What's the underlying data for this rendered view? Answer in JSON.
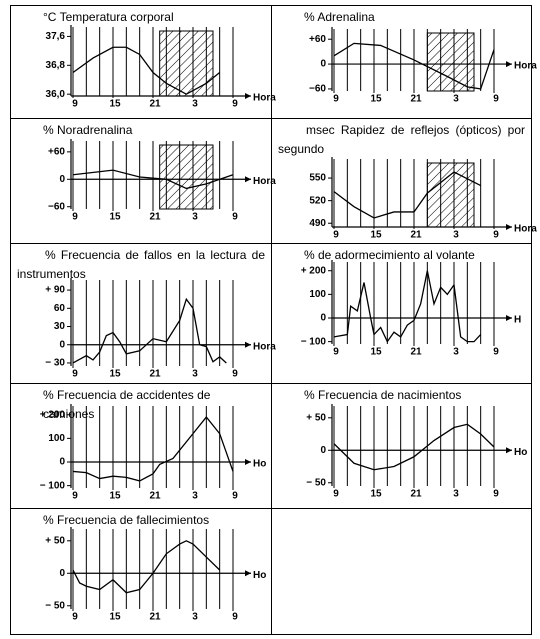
{
  "chart_data": [
    {
      "type": "line",
      "title": "°C Temperatura corporal",
      "x_label": "Hora",
      "x": [
        0,
        3,
        6,
        8,
        10,
        12,
        14,
        17,
        20,
        22
      ],
      "values": [
        36.6,
        37.0,
        37.3,
        37.3,
        37.1,
        36.6,
        36.3,
        36.0,
        36.3,
        36.6
      ],
      "xlim": [
        0,
        24
      ],
      "xticks": [
        {
          "value": 0,
          "label": "9"
        },
        {
          "value": 6,
          "label": "15"
        },
        {
          "value": 12,
          "label": "21"
        },
        {
          "value": 18,
          "label": "3"
        },
        {
          "value": 24,
          "label": "9"
        }
      ],
      "ylim": [
        35.95,
        37.75
      ],
      "yticks": [
        {
          "value": 36.0,
          "label": "36,0"
        },
        {
          "value": 36.8,
          "label": "36,8"
        },
        {
          "value": 37.6,
          "label": "37,6"
        }
      ],
      "shade": [
        13,
        21
      ],
      "color": "#000000"
    },
    {
      "type": "line",
      "title": "% Adrenalina",
      "x_label": "Hora",
      "x": [
        0,
        3,
        7,
        12,
        17,
        20,
        22,
        24
      ],
      "values": [
        20,
        50,
        45,
        10,
        -30,
        -55,
        -60,
        35
      ],
      "xlim": [
        0,
        24
      ],
      "xticks": [
        {
          "value": 0,
          "label": "9"
        },
        {
          "value": 6,
          "label": "15"
        },
        {
          "value": 12,
          "label": "21"
        },
        {
          "value": 18,
          "label": "3"
        },
        {
          "value": 24,
          "label": "9"
        }
      ],
      "ylim": [
        -65,
        75
      ],
      "yticks": [
        {
          "value": 60,
          "label": "+60"
        },
        0,
        {
          "value": -60,
          "label": "−60"
        }
      ],
      "shade": [
        14,
        21
      ],
      "color": "#000000"
    },
    {
      "type": "line",
      "title": "% Noradrenalina",
      "x_label": "Hora",
      "x": [
        0,
        6,
        10,
        14,
        17,
        20,
        24
      ],
      "values": [
        10,
        20,
        5,
        0,
        -20,
        -10,
        10
      ],
      "xlim": [
        0,
        24
      ],
      "xticks": [
        {
          "value": 0,
          "label": "9"
        },
        {
          "value": 6,
          "label": "15"
        },
        {
          "value": 12,
          "label": "21"
        },
        {
          "value": 18,
          "label": "3"
        },
        {
          "value": 24,
          "label": "9"
        }
      ],
      "ylim": [
        -65,
        75
      ],
      "yticks": [
        {
          "value": 60,
          "label": "+60"
        },
        0,
        {
          "value": -60,
          "label": "−60"
        }
      ],
      "shade": [
        13,
        21
      ],
      "color": "#000000"
    },
    {
      "type": "line",
      "title": "msec Rapidez de reflejos (ópticos) por segundo",
      "x_label": "Hora",
      "x": [
        0,
        3,
        6,
        9,
        12,
        14,
        18,
        22
      ],
      "values": [
        532,
        512,
        497,
        505,
        505,
        530,
        558,
        540
      ],
      "xlim": [
        0,
        24
      ],
      "xticks": [
        {
          "value": 0,
          "label": "9"
        },
        {
          "value": 6,
          "label": "15"
        },
        {
          "value": 12,
          "label": "21"
        },
        {
          "value": 18,
          "label": "3"
        },
        {
          "value": 24,
          "label": "9"
        }
      ],
      "ylim": [
        485,
        570
      ],
      "yticks": [
        490,
        520,
        550
      ],
      "shade": [
        14,
        21
      ],
      "color": "#000000"
    },
    {
      "type": "line",
      "title": "% Frecuencia de fallos en la lectura de instrumentos",
      "x_label": "Hora",
      "x": [
        0,
        2,
        3,
        4,
        5,
        6,
        7,
        8,
        10,
        12,
        14,
        16,
        17,
        18,
        19,
        20,
        21,
        22,
        23
      ],
      "values": [
        -30,
        -18,
        -25,
        -12,
        15,
        20,
        5,
        -15,
        -10,
        10,
        5,
        40,
        75,
        60,
        0,
        -3,
        -28,
        -20,
        -30
      ],
      "xlim": [
        0,
        24
      ],
      "xticks": [
        {
          "value": 0,
          "label": "9"
        },
        {
          "value": 6,
          "label": "15"
        },
        {
          "value": 12,
          "label": "21"
        },
        {
          "value": 18,
          "label": "3"
        },
        {
          "value": 24,
          "label": "9"
        }
      ],
      "ylim": [
        -35,
        100
      ],
      "yticks": [
        {
          "value": 90,
          "label": "+ 90"
        },
        60,
        30,
        0,
        {
          "value": -30,
          "label": "− 30"
        }
      ],
      "color": "#000000"
    },
    {
      "type": "line",
      "title": "% de adormecimiento al volante",
      "x_label": "H",
      "x": [
        0,
        2,
        2.5,
        3.5,
        4.5,
        5.5,
        6,
        7,
        8,
        9,
        10,
        11,
        12,
        13,
        14,
        15,
        16,
        17,
        18,
        19,
        20,
        21,
        22
      ],
      "values": [
        -80,
        -70,
        50,
        30,
        150,
        0,
        -70,
        -40,
        -100,
        -60,
        -80,
        -30,
        -10,
        60,
        200,
        60,
        130,
        100,
        140,
        -80,
        -100,
        -100,
        -70
      ],
      "xlim": [
        0,
        24
      ],
      "xticks": [
        {
          "value": 0,
          "label": "9"
        },
        {
          "value": 6,
          "label": "15"
        },
        {
          "value": 12,
          "label": "21"
        },
        {
          "value": 18,
          "label": "3"
        },
        {
          "value": 24,
          "label": "9"
        }
      ],
      "ylim": [
        -110,
        220
      ],
      "yticks": [
        {
          "value": 200,
          "label": "+ 200"
        },
        100,
        0,
        {
          "value": -100,
          "label": "− 100"
        }
      ],
      "color": "#000000"
    },
    {
      "type": "line",
      "title": "% Frecuencia de accidentes de camiones",
      "x_label": "Ho",
      "x": [
        0,
        2,
        4,
        6,
        8,
        10,
        12,
        13,
        15,
        18,
        20,
        22,
        24
      ],
      "values": [
        -40,
        -45,
        -70,
        -60,
        -65,
        -80,
        -50,
        -10,
        15,
        120,
        190,
        120,
        -40
      ],
      "xlim": [
        0,
        24
      ],
      "xticks": [
        {
          "value": 0,
          "label": "9"
        },
        {
          "value": 6,
          "label": "15"
        },
        {
          "value": 12,
          "label": "21"
        },
        {
          "value": 18,
          "label": "3"
        },
        {
          "value": 24,
          "label": "9"
        }
      ],
      "ylim": [
        -110,
        220
      ],
      "yticks": [
        {
          "value": 200,
          "label": "+ 200"
        },
        100,
        0,
        {
          "value": -100,
          "label": "− 100"
        }
      ],
      "color": "#000000"
    },
    {
      "type": "line",
      "title": "% Frecuencia de nacimientos",
      "x_label": "Ho",
      "x": [
        0,
        3,
        6,
        9,
        12,
        15,
        18,
        20,
        22,
        24
      ],
      "values": [
        10,
        -20,
        -30,
        -25,
        -10,
        15,
        35,
        40,
        25,
        5
      ],
      "xlim": [
        0,
        24
      ],
      "xticks": [
        {
          "value": 0,
          "label": "9"
        },
        {
          "value": 6,
          "label": "15"
        },
        {
          "value": 12,
          "label": "21"
        },
        {
          "value": 18,
          "label": "3"
        },
        {
          "value": 24,
          "label": "9"
        }
      ],
      "ylim": [
        -55,
        62
      ],
      "yticks": [
        {
          "value": 50,
          "label": "+ 50"
        },
        0,
        {
          "value": -50,
          "label": "− 50"
        }
      ],
      "color": "#000000"
    },
    {
      "type": "line",
      "title": "% Frecuencia de fallecimientos",
      "x_label": "Ho",
      "x": [
        0,
        1,
        2,
        4,
        6,
        8,
        10,
        12,
        14,
        16,
        17,
        18,
        20,
        22
      ],
      "values": [
        5,
        -15,
        -20,
        -25,
        -10,
        -30,
        -25,
        0,
        30,
        45,
        50,
        45,
        25,
        5
      ],
      "xlim": [
        0,
        24
      ],
      "xticks": [
        {
          "value": 0,
          "label": "9"
        },
        {
          "value": 6,
          "label": "15"
        },
        {
          "value": 12,
          "label": "21"
        },
        {
          "value": 18,
          "label": "3"
        },
        {
          "value": 24,
          "label": "9"
        }
      ],
      "ylim": [
        -55,
        62
      ],
      "yticks": [
        {
          "value": 50,
          "label": "+ 50"
        },
        0,
        {
          "value": -50,
          "label": "− 50"
        }
      ],
      "color": "#000000"
    }
  ]
}
